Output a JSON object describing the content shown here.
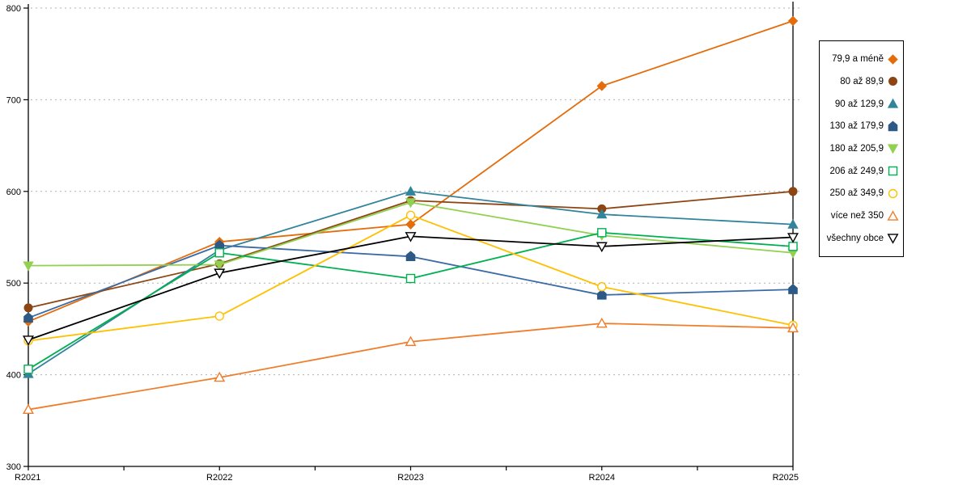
{
  "chart_data": {
    "type": "line",
    "title": "",
    "xlabel": "",
    "ylabel": "",
    "categories": [
      "R2021",
      "R2022",
      "R2023",
      "R2024",
      "R2025"
    ],
    "ylim": [
      300,
      800
    ],
    "ytick_step": 100,
    "yticks": [
      "300",
      "400",
      "500",
      "600",
      "700",
      "800"
    ],
    "grid": "horizontal dashed gray",
    "legend_position": "right",
    "axis_color": "#000000",
    "grid_color": "#b0b0b0",
    "series": [
      {
        "name": "79,9 a méně",
        "color": "#E46C0A",
        "marker": "diamond",
        "fill": "filled",
        "values": [
          458,
          545,
          564,
          715,
          786
        ]
      },
      {
        "name": "80 až 89,9",
        "color": "#8C4513",
        "marker": "circle",
        "fill": "filled",
        "values": [
          473,
          521,
          590,
          581,
          600
        ]
      },
      {
        "name": "90 až 129,9",
        "color": "#31849B",
        "marker": "triangle-up",
        "fill": "filled",
        "values": [
          401,
          536,
          600,
          575,
          564
        ]
      },
      {
        "name": "130 až 179,9",
        "color": "#3A6BA5",
        "marker": "pentagon",
        "fill": "filled",
        "marker_color": "#2D5986",
        "values": [
          462,
          541,
          529,
          487,
          493
        ]
      },
      {
        "name": "180 až 205,9",
        "color": "#92D050",
        "marker": "triangle-down",
        "fill": "filled",
        "values": [
          519,
          520,
          588,
          552,
          533
        ]
      },
      {
        "name": "206 až 249,9",
        "color": "#00B050",
        "marker": "square",
        "fill": "open",
        "values": [
          406,
          533,
          505,
          555,
          540
        ]
      },
      {
        "name": "250 až 349,9",
        "color": "#FFC000",
        "marker": "circle",
        "fill": "open",
        "values": [
          437,
          464,
          574,
          496,
          454
        ]
      },
      {
        "name": "více než 350",
        "color": "#F07D2B",
        "marker": "triangle-up",
        "fill": "open",
        "values": [
          362,
          397,
          436,
          456,
          451
        ]
      },
      {
        "name": "všechny obce",
        "color": "#000000",
        "marker": "triangle-down",
        "fill": "open",
        "values": [
          438,
          511,
          551,
          540,
          550
        ]
      }
    ]
  }
}
